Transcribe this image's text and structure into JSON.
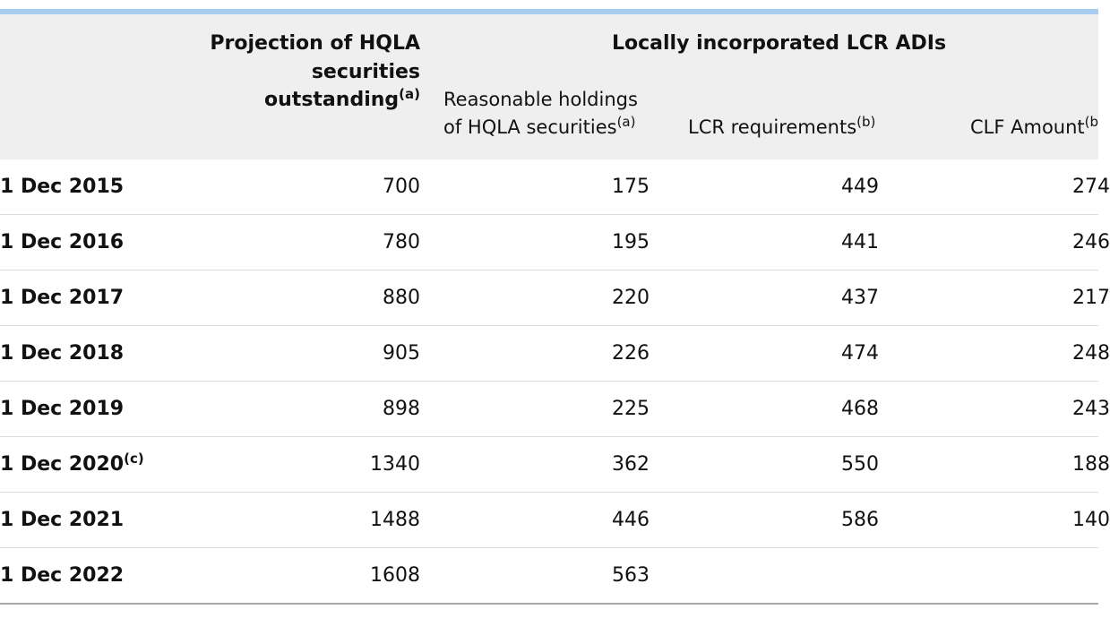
{
  "header": {
    "projection": {
      "line1": "Projection of HQLA",
      "line2": "securities",
      "line3": "outstanding",
      "note": "(a)"
    },
    "group_title": "Locally incorporated LCR ADIs",
    "reasonable": {
      "line1": "Reasonable holdings",
      "line2": "of HQLA securities",
      "note": "(a)"
    },
    "lcr": {
      "label": "LCR requirements",
      "note": "(b)"
    },
    "clf": {
      "label": "CLF Amount",
      "note": "(b"
    }
  },
  "rows": [
    {
      "date": "1 Dec 2015",
      "date_note": "",
      "projection": "700",
      "reasonable": "175",
      "lcr": "449",
      "clf": "274"
    },
    {
      "date": "1 Dec 2016",
      "date_note": "",
      "projection": "780",
      "reasonable": "195",
      "lcr": "441",
      "clf": "246"
    },
    {
      "date": "1 Dec 2017",
      "date_note": "",
      "projection": "880",
      "reasonable": "220",
      "lcr": "437",
      "clf": "217"
    },
    {
      "date": "1 Dec 2018",
      "date_note": "",
      "projection": "905",
      "reasonable": "226",
      "lcr": "474",
      "clf": "248"
    },
    {
      "date": "1 Dec 2019",
      "date_note": "",
      "projection": "898",
      "reasonable": "225",
      "lcr": "468",
      "clf": "243"
    },
    {
      "date": "1 Dec 2020",
      "date_note": "(c)",
      "projection": "1340",
      "reasonable": "362",
      "lcr": "550",
      "clf": "188"
    },
    {
      "date": "1 Dec 2021",
      "date_note": "",
      "projection": "1488",
      "reasonable": "446",
      "lcr": "586",
      "clf": "140"
    },
    {
      "date": "1 Dec 2022",
      "date_note": "",
      "projection": "1608",
      "reasonable": "563",
      "lcr": "",
      "clf": ""
    }
  ]
}
